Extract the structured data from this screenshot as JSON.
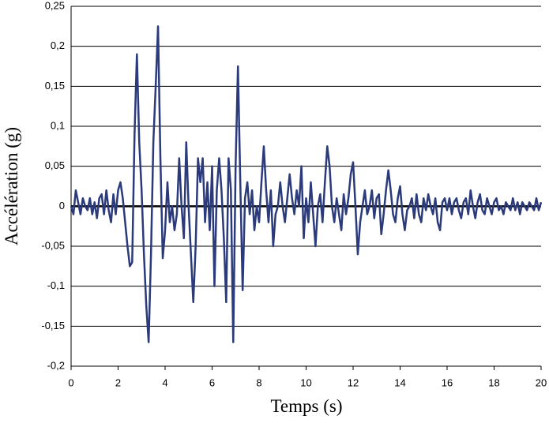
{
  "chart_data": {
    "type": "line",
    "xlabel": "Temps (s)",
    "ylabel": "Accélération (g)",
    "xlim": [
      0,
      20
    ],
    "xticks": [
      0,
      2,
      4,
      6,
      8,
      10,
      12,
      14,
      16,
      18,
      20
    ],
    "ylim": [
      -0.2,
      0.25
    ],
    "yticks": [
      {
        "value": -0.2,
        "label": "-0,2"
      },
      {
        "value": -0.15,
        "label": "-0,15"
      },
      {
        "value": -0.1,
        "label": "-0,1"
      },
      {
        "value": -0.05,
        "label": "-0,05"
      },
      0,
      {
        "value": 0.05,
        "label": "0,05"
      },
      {
        "value": 0.1,
        "label": "0,1"
      },
      {
        "value": 0.15,
        "label": "0,15"
      },
      {
        "value": 0.2,
        "label": "0,2"
      },
      {
        "value": 0.25,
        "label": "0,25"
      }
    ],
    "grid": true,
    "color": "#2b3a7a",
    "x": [
      0,
      0.1,
      0.2,
      0.3,
      0.4,
      0.5,
      0.6,
      0.7,
      0.8,
      0.9,
      1,
      1.1,
      1.2,
      1.3,
      1.4,
      1.5,
      1.6,
      1.7,
      1.8,
      1.9,
      2,
      2.1,
      2.2,
      2.3,
      2.4,
      2.5,
      2.6,
      2.7,
      2.8,
      2.9,
      3,
      3.1,
      3.2,
      3.3,
      3.4,
      3.5,
      3.6,
      3.7,
      3.8,
      3.9,
      4,
      4.1,
      4.2,
      4.3,
      4.4,
      4.5,
      4.6,
      4.7,
      4.8,
      4.9,
      5,
      5.1,
      5.2,
      5.3,
      5.4,
      5.5,
      5.6,
      5.7,
      5.8,
      5.9,
      6,
      6.1,
      6.2,
      6.3,
      6.4,
      6.5,
      6.6,
      6.7,
      6.8,
      6.9,
      7,
      7.1,
      7.2,
      7.3,
      7.4,
      7.5,
      7.6,
      7.7,
      7.8,
      7.9,
      8,
      8.1,
      8.2,
      8.3,
      8.4,
      8.5,
      8.6,
      8.7,
      8.8,
      8.9,
      9,
      9.1,
      9.2,
      9.3,
      9.4,
      9.5,
      9.6,
      9.7,
      9.8,
      9.9,
      10,
      10.1,
      10.2,
      10.3,
      10.4,
      10.5,
      10.6,
      10.7,
      10.8,
      10.9,
      11,
      11.1,
      11.2,
      11.3,
      11.4,
      11.5,
      11.6,
      11.7,
      11.8,
      11.9,
      12,
      12.1,
      12.2,
      12.3,
      12.4,
      12.5,
      12.6,
      12.7,
      12.8,
      12.9,
      13,
      13.1,
      13.2,
      13.3,
      13.4,
      13.5,
      13.6,
      13.7,
      13.8,
      13.9,
      14,
      14.1,
      14.2,
      14.3,
      14.4,
      14.5,
      14.6,
      14.7,
      14.8,
      14.9,
      15,
      15.1,
      15.2,
      15.3,
      15.4,
      15.5,
      15.6,
      15.7,
      15.8,
      15.9,
      16,
      16.1,
      16.2,
      16.3,
      16.4,
      16.5,
      16.6,
      16.7,
      16.8,
      16.9,
      17,
      17.1,
      17.2,
      17.3,
      17.4,
      17.5,
      17.6,
      17.7,
      17.8,
      17.9,
      18,
      18.1,
      18.2,
      18.3,
      18.4,
      18.5,
      18.6,
      18.7,
      18.8,
      18.9,
      19,
      19.1,
      19.2,
      19.3,
      19.4,
      19.5,
      19.6,
      19.7,
      19.8,
      19.9,
      20
    ],
    "values": [
      0,
      -0.01,
      0.02,
      0.005,
      -0.01,
      0.01,
      0,
      -0.005,
      0.01,
      -0.01,
      0.005,
      -0.015,
      0.01,
      0.015,
      -0.01,
      0.02,
      -0.005,
      -0.02,
      0.015,
      -0.01,
      0.02,
      0.03,
      0.01,
      -0.02,
      -0.05,
      -0.075,
      -0.07,
      0.09,
      0.19,
      0.08,
      0.02,
      -0.06,
      -0.125,
      -0.17,
      -0.06,
      0.08,
      0.15,
      0.225,
      0.06,
      -0.065,
      -0.03,
      0.03,
      -0.02,
      0,
      -0.03,
      -0.01,
      0.06,
      0,
      -0.04,
      0.08,
      0,
      -0.06,
      -0.12,
      -0.05,
      0.06,
      0.03,
      0.06,
      -0.02,
      0.03,
      -0.03,
      0.05,
      -0.1,
      0.02,
      0.06,
      0.02,
      -0.04,
      -0.12,
      0.06,
      0.02,
      -0.17,
      0.05,
      0.175,
      0.03,
      -0.105,
      0.01,
      0.03,
      -0.01,
      0.02,
      -0.03,
      0,
      -0.02,
      0.03,
      0.075,
      0.02,
      -0.02,
      0.02,
      -0.05,
      -0.01,
      0,
      0.03,
      0,
      -0.02,
      0.01,
      0.04,
      0.01,
      -0.01,
      0.02,
      0,
      0.05,
      -0.04,
      0.01,
      -0.02,
      0.03,
      -0.01,
      -0.05,
      0,
      0.015,
      -0.02,
      0.03,
      0.075,
      0.05,
      0,
      -0.02,
      0.01,
      -0.01,
      -0.03,
      0.015,
      -0.01,
      0.01,
      0.04,
      0.055,
      0,
      -0.06,
      -0.02,
      0,
      0.02,
      -0.01,
      0,
      0.02,
      -0.015,
      0.01,
      0.015,
      -0.035,
      -0.01,
      0.02,
      0.045,
      0.02,
      -0.01,
      -0.02,
      0.01,
      0.025,
      -0.01,
      -0.03,
      -0.005,
      0,
      0.01,
      -0.015,
      0.015,
      -0.01,
      -0.02,
      0.01,
      -0.005,
      0.015,
      0,
      -0.01,
      0.01,
      -0.02,
      -0.03,
      0.005,
      0.01,
      -0.005,
      0.01,
      -0.01,
      0.005,
      0.01,
      -0.005,
      -0.015,
      0.005,
      0.01,
      -0.01,
      0.02,
      0,
      -0.015,
      0.005,
      0.015,
      -0.005,
      -0.01,
      0.01,
      0,
      -0.01,
      0.005,
      0.01,
      -0.005,
      0,
      -0.01,
      0.005,
      0,
      -0.005,
      0.01,
      -0.005,
      0.005,
      -0.01,
      0.005,
      0,
      -0.005,
      0.005,
      0,
      -0.005,
      0.01,
      -0.005,
      0.005
    ]
  }
}
